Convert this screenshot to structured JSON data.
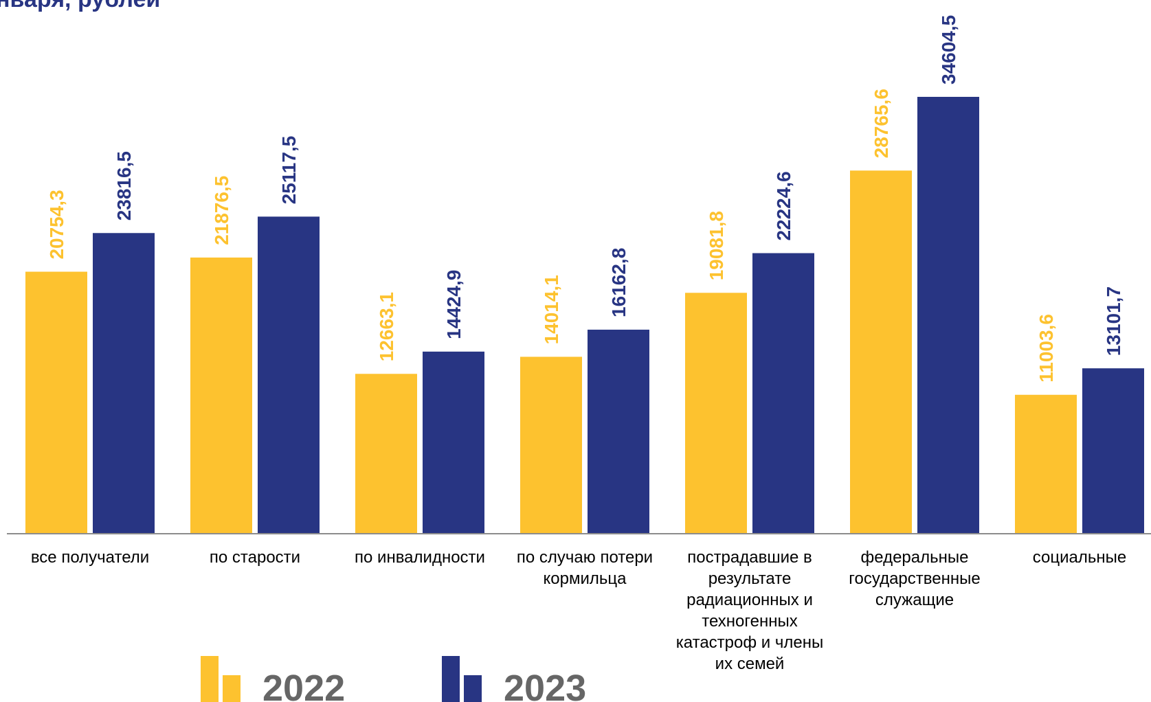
{
  "title": "нваря, рублей",
  "colors": {
    "series_2022": "#FDC22F",
    "series_2023": "#283583",
    "title": "#283583",
    "axis": "#8C8C8C",
    "legend_text": "#666666"
  },
  "legend": [
    {
      "label": "2022",
      "icon": "bar-legend-icon"
    },
    {
      "label": "2023",
      "icon": "bar-legend-icon"
    }
  ],
  "chart_data": {
    "type": "bar",
    "title": "нваря, рублей",
    "categories": [
      [
        "все получатели"
      ],
      [
        "по старости"
      ],
      [
        "по инвалидности"
      ],
      [
        "по случаю потери",
        "кормильца"
      ],
      [
        "пострадавшие в",
        "результате",
        "радиационных и",
        "техногенных",
        "катастроф и члены",
        "их семей"
      ],
      [
        "федеральные",
        "государственные",
        "служащие"
      ],
      [
        "социальные"
      ]
    ],
    "series": [
      {
        "name": "2022",
        "values": [
          20754.3,
          21876.5,
          12663.1,
          14014.1,
          19081.8,
          28765.6,
          11003.6
        ],
        "labels": [
          "20754,3",
          "21876,5",
          "12663,1",
          "14014,1",
          "19081,8",
          "28765,6",
          "11003,6"
        ]
      },
      {
        "name": "2023",
        "values": [
          23816.5,
          25117.5,
          14424.9,
          16162.8,
          22224.6,
          34604.5,
          13101.7
        ],
        "labels": [
          "23816,5",
          "25117,5",
          "14424,9",
          "16162,8",
          "22224,6",
          "34604,5",
          "13101,7"
        ]
      }
    ],
    "ylim": [
      0,
      34604.5
    ],
    "grid": false,
    "legend_position": "bottom-left"
  }
}
